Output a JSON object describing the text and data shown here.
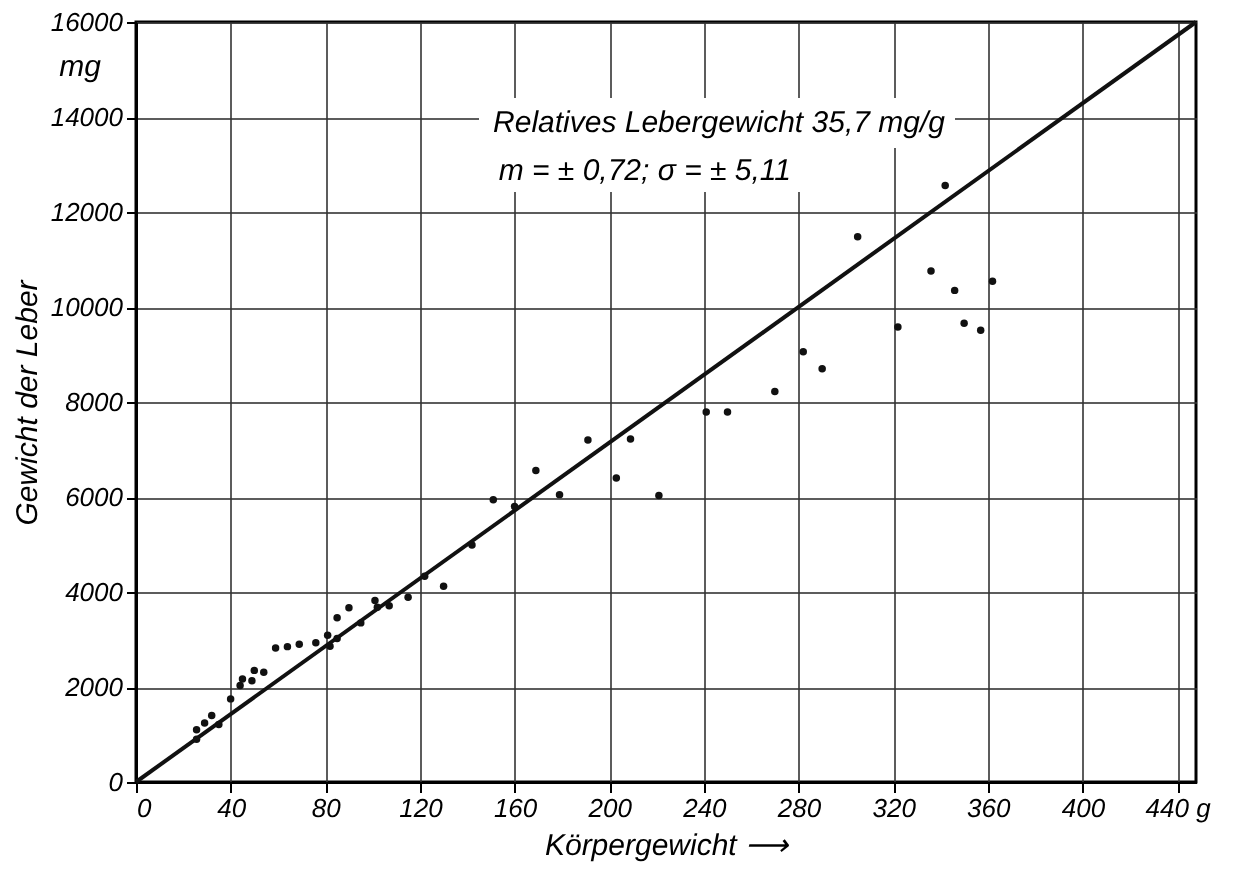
{
  "chart_data": {
    "type": "scatter",
    "xlabel": "Körpergewicht ⟶",
    "ylabel": "Gewicht der Leber",
    "annotations": [
      "Relatives Lebergewicht 35,7 mg/g",
      "m = ± 0,72; σ = ± 5,11",
      "mg"
    ],
    "xlim": [
      0,
      448
    ],
    "xticks": [
      0,
      40,
      80,
      120,
      160,
      200,
      240,
      280,
      320,
      360,
      400,
      {
        "value": 440,
        "label": "440 g"
      }
    ],
    "ylim": [
      0,
      16000
    ],
    "yticks": [
      0,
      2000,
      4000,
      6000,
      8000,
      10000,
      12000,
      14000,
      16000
    ],
    "grid": true,
    "series": [
      {
        "marker": "circle",
        "color": "#111111",
        "x": [
          25.6,
          25.6,
          29,
          32,
          35,
          40,
          44,
          45,
          49,
          50,
          54,
          59,
          64,
          69,
          76,
          81,
          82,
          85,
          85,
          90,
          95,
          101,
          102,
          107,
          115,
          122,
          130,
          142,
          151,
          160,
          169,
          179,
          191,
          203,
          209,
          221,
          241,
          250,
          270,
          282,
          290,
          305,
          322,
          336,
          342,
          346,
          350,
          357,
          362
        ],
        "values": [
          900,
          1100,
          1240,
          1400,
          1210,
          1750,
          2030,
          2170,
          2130,
          2350,
          2310,
          2820,
          2850,
          2900,
          2930,
          3090,
          2860,
          3020,
          3460,
          3670,
          3350,
          3820,
          3680,
          3710,
          3890,
          4330,
          4120,
          4990,
          5940,
          5800,
          6560,
          6050,
          7200,
          6400,
          7220,
          6030,
          7790,
          7790,
          8220,
          9060,
          8700,
          11480,
          9580,
          10760,
          12560,
          10350,
          9660,
          9510,
          10540
        ]
      },
      {
        "type": "line",
        "color": "#111111",
        "line_style": "solid",
        "x": [
          0,
          448
        ],
        "values": [
          0,
          16000
        ]
      }
    ]
  }
}
